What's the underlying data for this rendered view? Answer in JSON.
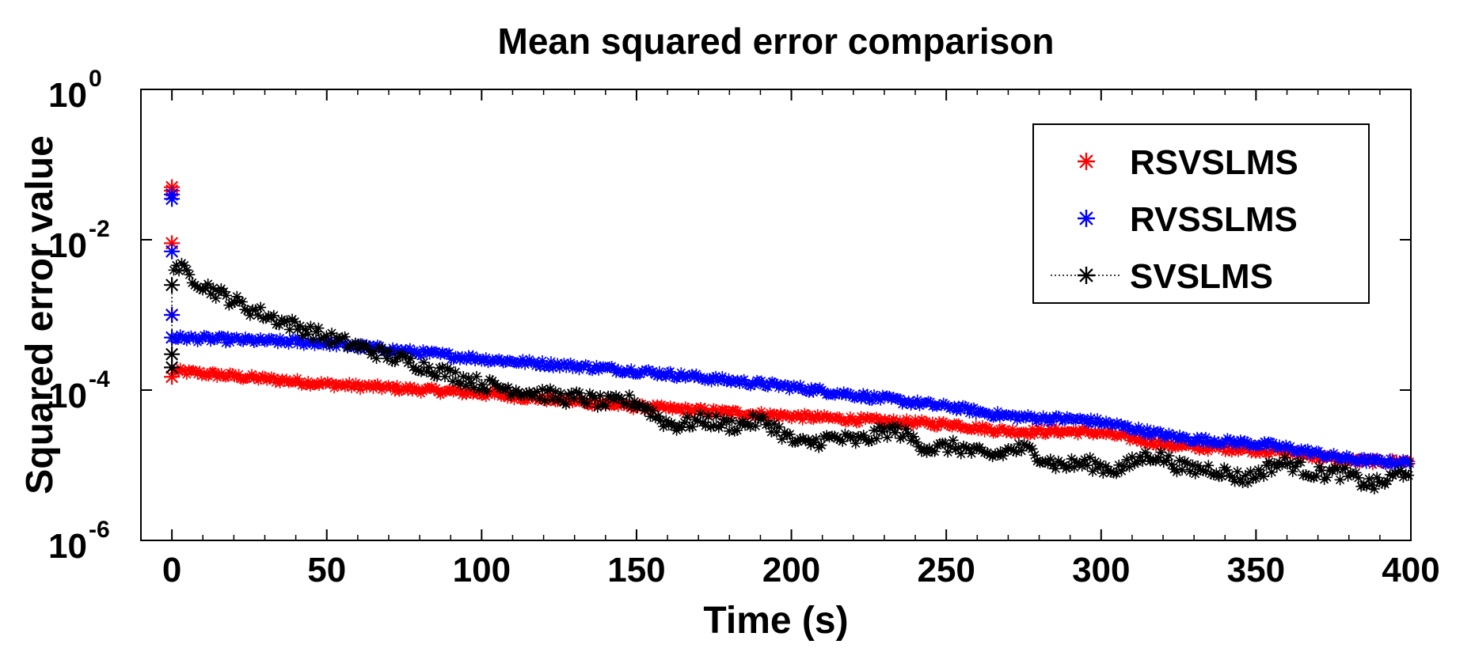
{
  "chart_data": {
    "type": "scatter",
    "title": "Mean squared error comparison",
    "xlabel": "Time (s)",
    "ylabel": "Squared error value",
    "xlim": [
      -10,
      400
    ],
    "ylim_log10": [
      -6,
      0
    ],
    "yscale": "log",
    "grid": false,
    "legend_position": "top-right",
    "x_ticks": [
      0,
      50,
      100,
      150,
      200,
      250,
      300,
      350,
      400
    ],
    "x_tick_labels": [
      "0",
      "50",
      "100",
      "150",
      "200",
      "250",
      "300",
      "350",
      "400"
    ],
    "y_ticks": [
      -6,
      -4,
      -2,
      0
    ],
    "y_tick_labels": [
      {
        "base": "10",
        "exp": "-6"
      },
      {
        "base": "10",
        "exp": "-4"
      },
      {
        "base": "10",
        "exp": "-2"
      },
      {
        "base": "10",
        "exp": "0"
      }
    ],
    "series": [
      {
        "name": "RSVSLMS",
        "color": "#ff0000",
        "marker": "star",
        "linestyle": "none",
        "initial_points": [
          [
            0,
            0.05
          ],
          [
            0,
            0.045
          ],
          [
            0,
            0.009
          ],
          [
            0,
            0.001
          ],
          [
            0,
            0.00015
          ]
        ],
        "trend": [
          [
            0,
            0.00018
          ],
          [
            50,
            0.00012
          ],
          [
            100,
            9e-05
          ],
          [
            150,
            6e-05
          ],
          [
            200,
            4.5e-05
          ],
          [
            250,
            3.5e-05
          ],
          [
            300,
            2.5e-05
          ],
          [
            350,
            1.5e-05
          ],
          [
            400,
            1.1e-05
          ]
        ]
      },
      {
        "name": "RVSSLMS",
        "color": "#0000ff",
        "marker": "star",
        "linestyle": "none",
        "initial_points": [
          [
            0,
            0.04
          ],
          [
            0,
            0.035
          ],
          [
            0,
            0.007
          ],
          [
            0,
            0.001
          ],
          [
            0,
            0.0005
          ]
        ],
        "trend": [
          [
            0,
            0.0005
          ],
          [
            50,
            0.00042
          ],
          [
            100,
            0.00026
          ],
          [
            150,
            0.00018
          ],
          [
            200,
            0.00011
          ],
          [
            250,
            6e-05
          ],
          [
            300,
            3.5e-05
          ],
          [
            350,
            1.8e-05
          ],
          [
            400,
            1.05e-05
          ]
        ]
      },
      {
        "name": "SVSLMS",
        "color": "#000000",
        "marker": "star",
        "linestyle": "dotted",
        "initial_points": [
          [
            0,
            0.0025
          ],
          [
            0,
            0.0003
          ],
          [
            0,
            0.0002
          ]
        ],
        "trend": [
          [
            0,
            0.005
          ],
          [
            10,
            0.0025
          ],
          [
            25,
            0.0012
          ],
          [
            50,
            0.0005
          ],
          [
            75,
            0.00025
          ],
          [
            100,
            0.00012
          ],
          [
            150,
            5.5e-05
          ],
          [
            200,
            2.5e-05
          ],
          [
            250,
            2e-05
          ],
          [
            275,
            1.2e-05
          ],
          [
            300,
            1.1e-05
          ],
          [
            350,
            8.5e-06
          ],
          [
            400,
            7e-06
          ]
        ]
      }
    ]
  }
}
